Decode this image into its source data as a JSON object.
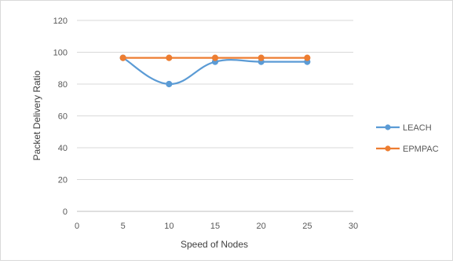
{
  "chart_data": {
    "type": "line",
    "title": "",
    "xlabel": "Speed of Nodes",
    "ylabel": "Packet Delivery Ratio",
    "x": [
      5,
      10,
      15,
      20,
      25
    ],
    "xlim": [
      0,
      30
    ],
    "ylim": [
      0,
      120
    ],
    "x_ticks": [
      "0",
      "5",
      "10",
      "15",
      "20",
      "25",
      "30"
    ],
    "y_ticks": [
      "0",
      "20",
      "40",
      "60",
      "80",
      "100",
      "120"
    ],
    "grid": "horizontal",
    "legend_position": "right",
    "series": [
      {
        "name": "LEACH",
        "values": [
          96.5,
          80,
          94,
          94,
          94
        ],
        "color": "#5b9bd5",
        "smooth": true
      },
      {
        "name": "EPMPAC",
        "values": [
          96.5,
          96.5,
          96.5,
          96.5,
          96.5
        ],
        "color": "#ed7d31",
        "smooth": false
      }
    ]
  }
}
